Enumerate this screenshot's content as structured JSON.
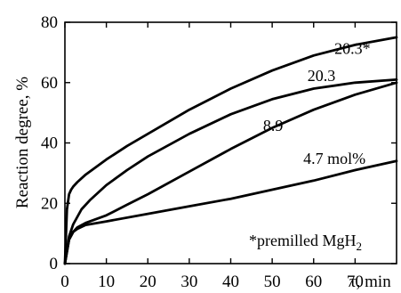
{
  "chart_data": {
    "type": "line",
    "xlabel": "τ, min",
    "ylabel": "Reaction degree, %",
    "xlim": [
      0,
      80
    ],
    "ylim": [
      0,
      80
    ],
    "xticks": [
      0,
      10,
      20,
      30,
      40,
      50,
      60,
      70
    ],
    "yticks": [
      0,
      20,
      40,
      60,
      80
    ],
    "grid": false,
    "note": {
      "prefix": "*premilled MgH",
      "subscript": "2"
    },
    "series": [
      {
        "name": "20.3*",
        "x": [
          0,
          0.5,
          1,
          1.5,
          2,
          3,
          5,
          10,
          15,
          20,
          30,
          40,
          50,
          60,
          70,
          80
        ],
        "y": [
          0,
          18,
          23,
          24.5,
          25.5,
          27,
          29.5,
          34.5,
          39,
          43,
          51,
          58,
          64,
          69,
          72.5,
          75
        ]
      },
      {
        "name": "20.3",
        "x": [
          0,
          1,
          2,
          4,
          6,
          10,
          15,
          20,
          30,
          40,
          50,
          60,
          70,
          80
        ],
        "y": [
          0,
          9,
          13,
          18,
          21,
          26,
          31,
          35.5,
          43,
          49.5,
          54.5,
          58,
          60,
          61
        ]
      },
      {
        "name": "8.9",
        "x": [
          0,
          1,
          2,
          3,
          5,
          10,
          15,
          20,
          30,
          40,
          50,
          60,
          70,
          80
        ],
        "y": [
          0,
          8,
          10.5,
          12,
          13.5,
          16,
          19.5,
          23,
          30.5,
          38,
          45,
          51,
          56,
          60
        ]
      },
      {
        "name": "4.7 mol%",
        "x": [
          0,
          1,
          2,
          3,
          5,
          10,
          20,
          30,
          40,
          50,
          60,
          70,
          80
        ],
        "y": [
          0,
          8,
          10.5,
          11.5,
          12.8,
          14,
          16.5,
          19,
          21.5,
          24.5,
          27.5,
          31,
          34
        ]
      }
    ],
    "labels": [
      {
        "text": "20.3*",
        "x": 65,
        "y": 69.5
      },
      {
        "text": "20.3",
        "x": 58.5,
        "y": 60.5
      },
      {
        "text": "8.9",
        "x": 47.8,
        "y": 44
      },
      {
        "text": "4.7 mol%",
        "x": 57.5,
        "y": 33
      }
    ]
  }
}
